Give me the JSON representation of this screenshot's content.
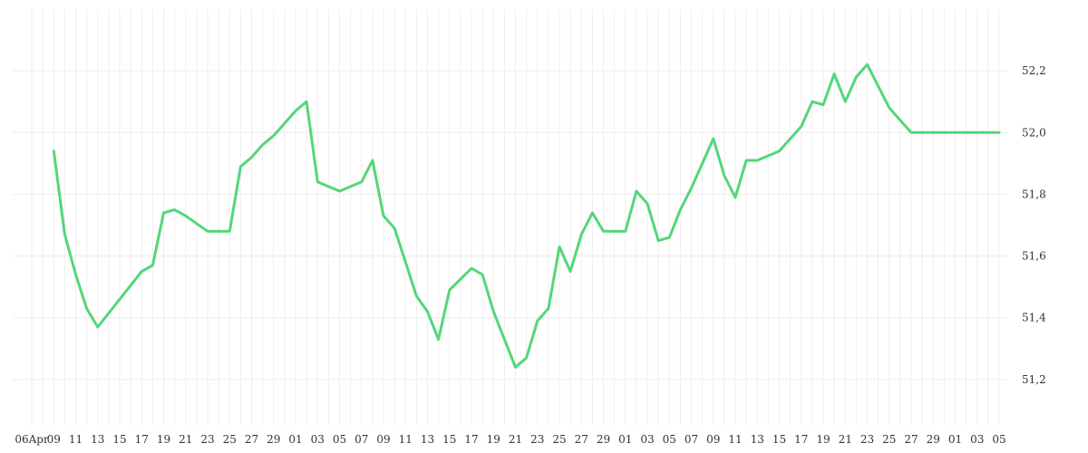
{
  "chart_data": {
    "type": "line",
    "title": "",
    "xlabel": "",
    "ylabel": "",
    "ylim": [
      51.05,
      52.4
    ],
    "grid": true,
    "line_color": "#54d67a",
    "grid_color": "#eeeeee",
    "x_tick_labels": [
      "06Apr",
      "09",
      "11",
      "13",
      "15",
      "17",
      "19",
      "21",
      "23",
      "25",
      "27",
      "29",
      "01",
      "03",
      "05",
      "07",
      "09",
      "11",
      "13",
      "15",
      "17",
      "19",
      "21",
      "23",
      "25",
      "27",
      "29",
      "01",
      "03",
      "05",
      "07",
      "09",
      "11",
      "13",
      "15",
      "17",
      "19",
      "21",
      "23",
      "25",
      "27",
      "29",
      "01",
      "03",
      "05"
    ],
    "y_ticks": [
      51.2,
      51.4,
      51.6,
      51.8,
      52.0,
      52.2
    ],
    "y_tick_labels": [
      "51,2",
      "51,4",
      "51,6",
      "51,8",
      "52,0",
      "52,2"
    ],
    "series": [
      {
        "x": [
          1.0,
          1.5,
          2.0,
          2.5,
          3.0,
          4.0,
          5.0,
          5.5,
          6.0,
          6.5,
          7.0,
          8.0,
          9.0,
          9.5,
          10.0,
          10.5,
          11.0,
          12.0,
          12.5,
          13.0,
          14.0,
          15.0,
          15.5,
          16.0,
          16.5,
          17.0,
          17.5,
          18.0,
          18.5,
          19.0,
          20.0,
          20.5,
          21.0,
          22.0,
          22.5,
          23.0,
          23.5,
          24.0,
          24.5,
          25.0,
          25.5,
          26.0,
          27.0,
          27.5,
          28.0,
          28.5,
          29.0,
          29.5,
          30.0,
          31.0,
          31.5,
          32.0,
          32.5,
          33.0,
          34.0,
          35.0,
          35.5,
          36.0,
          36.5,
          37.0,
          37.5,
          38.0,
          39.0,
          39.5,
          40.0,
          40.5,
          41.0,
          41.5,
          42.0,
          42.5,
          43.0,
          43.5,
          44.0
        ],
        "y": [
          51.94,
          51.67,
          51.54,
          51.43,
          51.37,
          51.46,
          51.55,
          51.57,
          51.74,
          51.75,
          51.73,
          51.68,
          51.68,
          51.89,
          51.92,
          51.96,
          51.99,
          52.07,
          52.1,
          51.84,
          51.81,
          51.84,
          51.91,
          51.73,
          51.69,
          51.58,
          51.47,
          51.42,
          51.33,
          51.49,
          51.56,
          51.54,
          51.42,
          51.24,
          51.27,
          51.39,
          51.43,
          51.63,
          51.55,
          51.67,
          51.74,
          51.68,
          51.68,
          51.81,
          51.77,
          51.65,
          51.66,
          51.75,
          51.82,
          51.98,
          51.86,
          51.79,
          51.91,
          51.91,
          51.94,
          52.02,
          52.1,
          52.09,
          52.19,
          52.1,
          52.18,
          52.22,
          52.08,
          52.04,
          52.0,
          52.0,
          52.0,
          52.0,
          52.0,
          52.0,
          52.0,
          52.0,
          52.0
        ]
      }
    ]
  }
}
